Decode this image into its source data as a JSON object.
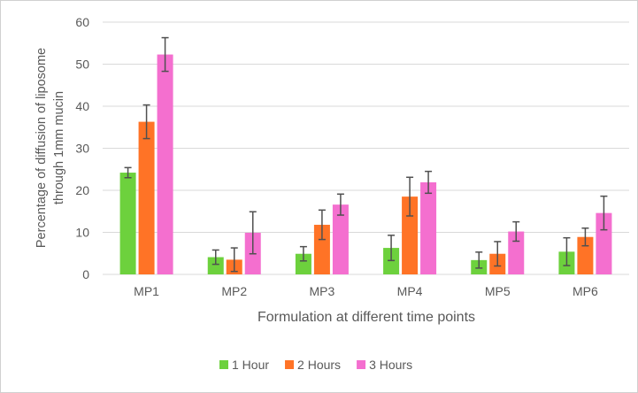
{
  "chart_data": {
    "type": "bar",
    "title": "",
    "xlabel": "Formulation at different time points",
    "ylabel": "Percentage of diffusion of liposome through 1mm mucin",
    "ylim": [
      0,
      60
    ],
    "yticks": [
      0,
      10,
      20,
      30,
      40,
      50,
      60
    ],
    "grid": true,
    "legend": "bottom",
    "categories": [
      "MP1",
      "MP2",
      "MP3",
      "MP4",
      "MP5",
      "MP6"
    ],
    "series": [
      {
        "name": "1 Hour",
        "color": "#6dd13d",
        "values": [
          24.2,
          4.1,
          4.9,
          6.3,
          3.4,
          5.4
        ],
        "errors": [
          1.2,
          1.7,
          1.7,
          3.0,
          1.9,
          3.3
        ]
      },
      {
        "name": "2 Hours",
        "color": "#ff7326",
        "values": [
          36.3,
          3.5,
          11.8,
          18.5,
          4.9,
          8.9
        ],
        "errors": [
          4.0,
          2.8,
          3.5,
          4.6,
          2.9,
          2.1
        ]
      },
      {
        "name": "3 Hours",
        "color": "#f46fcf",
        "values": [
          52.3,
          9.9,
          16.6,
          21.9,
          10.2,
          14.6
        ],
        "errors": [
          4.0,
          5.0,
          2.5,
          2.6,
          2.3,
          4.0
        ]
      }
    ]
  }
}
